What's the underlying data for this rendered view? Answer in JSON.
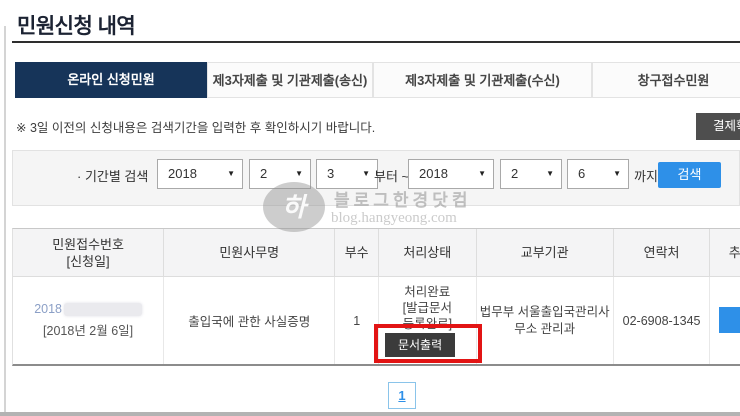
{
  "page": {
    "title": "민원신청 내역"
  },
  "tabs": {
    "online": "온라인 신청민원",
    "third_party_send": "제3자제출 및 기관제출(송신)",
    "third_party_receive": "제3자제출 및 기관제출(수신)",
    "window_receipt": "창구접수민원"
  },
  "notice": {
    "text": "※ 3일 이전의 신청내용은 검색기간을 입력한 후 확인하시기 바랍니다.",
    "payment_button": "결제확인"
  },
  "search": {
    "label": "· 기간별 검색",
    "from_year": "2018",
    "from_month": "2",
    "from_day": "3",
    "range_separator": "부터 ~",
    "to_year": "2018",
    "to_month": "2",
    "to_day": "6",
    "range_end": "까지",
    "button": "검색"
  },
  "icons": {
    "dropdown_caret": "▼"
  },
  "watermark": {
    "logo_glyph": "하",
    "line1": "블로그한경닷컴",
    "line2": "blog.hangyeong.com"
  },
  "table": {
    "headers": {
      "receipt": "민원접수번호\n[신청일]",
      "service": "민원사무명",
      "copies": "부수",
      "status": "처리상태",
      "agency": "교부기관",
      "contact": "연락처",
      "extra": "추가"
    },
    "row": {
      "receipt_visible": "2018",
      "date": "[2018년 2월 6일]",
      "service": "출입국에 관한 사실증명",
      "copies": "1",
      "status": "처리완료\n[발급문서\n등록완료]",
      "print_button": "문서출력",
      "agency": "법무부 서울출입국관리사\n무소 관리과",
      "contact": "02-6908-1345"
    }
  },
  "pagination": {
    "page1": "1"
  },
  "colors": {
    "accent_blue": "#2e90e8",
    "active_tab_navy": "#163459",
    "annotation_red": "#e21414",
    "dark_button": "#3b3b3b",
    "gray_button": "#4e4e4e"
  }
}
